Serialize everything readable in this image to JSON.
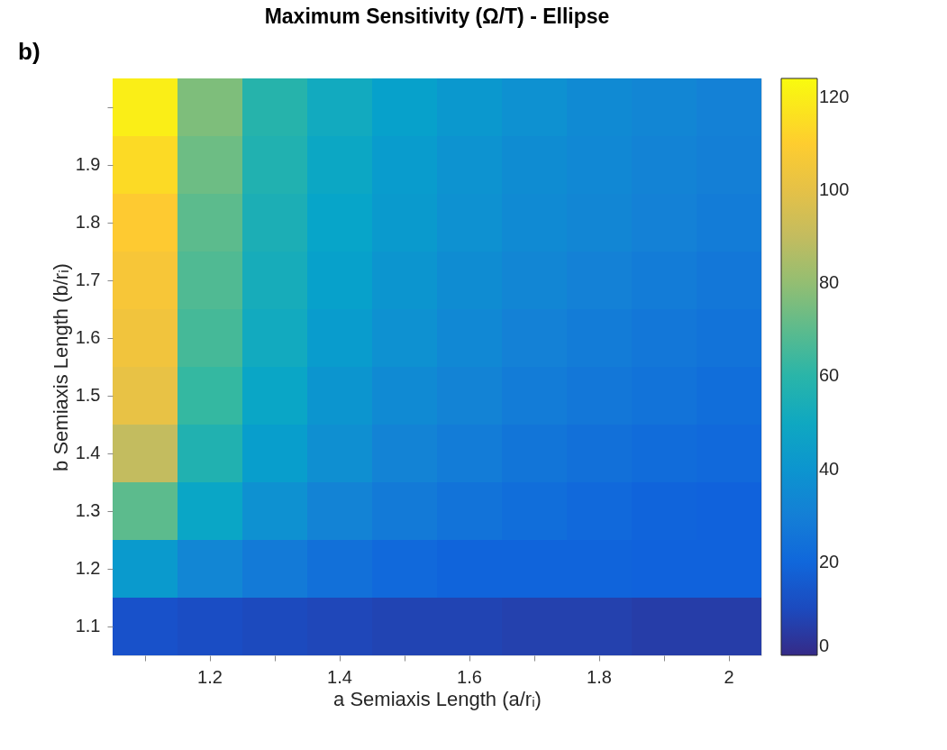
{
  "chart_data": {
    "type": "heatmap",
    "title": "Maximum Sensitivity (Ω/T) - Ellipse",
    "xlabel": "a Semiaxis Length (a/rᵢ)",
    "ylabel": "b Semiaxis Length (b/rᵢ)",
    "annotations": [
      "b)"
    ],
    "categories": [
      null,
      "1.2",
      null,
      "1.4",
      null,
      "1.6",
      null,
      "1.8",
      null,
      "2"
    ],
    "y_categories": [
      null,
      "1.9",
      "1.8",
      "1.7",
      "1.6",
      "1.5",
      "1.4",
      "1.3",
      "1.2",
      "1.1"
    ],
    "cells": [
      [
        120,
        76,
        59,
        51,
        45,
        41,
        38,
        35,
        33,
        31
      ],
      [
        114,
        73,
        57,
        49,
        43,
        39,
        36,
        34,
        32,
        30
      ],
      [
        109,
        70,
        55,
        47,
        42,
        38,
        35,
        33,
        31,
        29
      ],
      [
        106,
        68,
        53,
        45,
        40,
        36,
        33,
        31,
        29,
        27
      ],
      [
        104,
        66,
        51,
        43,
        38,
        34,
        31,
        29,
        27,
        25
      ],
      [
        101,
        63,
        48,
        40,
        35,
        32,
        29,
        27,
        25,
        23
      ],
      [
        90,
        57,
        44,
        37,
        32,
        29,
        26,
        24,
        22,
        21
      ],
      [
        70,
        48,
        38,
        32,
        28,
        25,
        23,
        21,
        19,
        18
      ],
      [
        42,
        33,
        28,
        24,
        21,
        19,
        19,
        19,
        18,
        18
      ],
      [
        12,
        11,
        10,
        9,
        8,
        8,
        7,
        7,
        6,
        6
      ]
    ],
    "clim": [
      0,
      124
    ],
    "cticks": [
      0,
      20,
      40,
      60,
      80,
      100,
      120
    ]
  }
}
